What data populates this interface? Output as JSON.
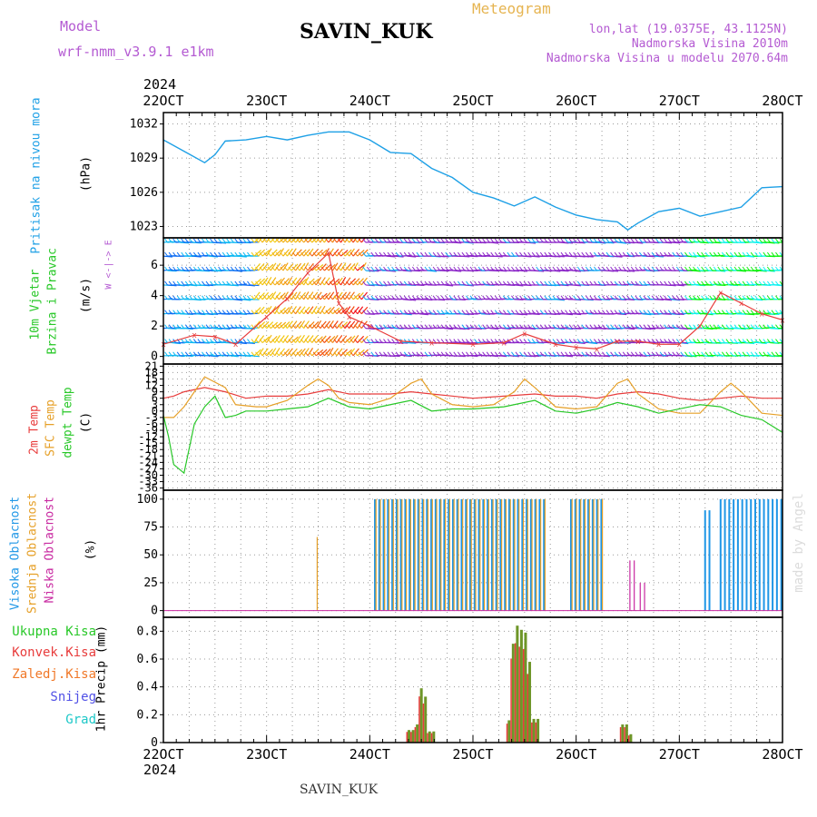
{
  "header": {
    "model_label": "Model",
    "model_name": "wrf-nmm_v3.9.1 e1km",
    "station": "SAVIN_KUK",
    "meteogram": "Meteogram",
    "lonlat": "lon,lat (19.0375E, 43.1125N)",
    "altitude": "Nadmorska Visina 2010m",
    "model_altitude": "Nadmorska Visina u modelu 2070.64m",
    "footer_station": "SAVIN_KUK",
    "watermark": "made by Angel"
  },
  "x_axis": {
    "year": "2024",
    "ticks": [
      "22OCT",
      "23OCT",
      "24OCT",
      "25OCT",
      "26OCT",
      "27OCT",
      "28OCT"
    ],
    "range_days": [
      22,
      28
    ]
  },
  "panel_labels": {
    "pressure": {
      "name": "Pritisak na nivou mora",
      "unit": "(hPa)"
    },
    "wind": {
      "name1": "10m Vjetar",
      "name2": "Brzina i Pravac",
      "unit": "(m/s)",
      "compass": "W <-|-> E"
    },
    "temp": {
      "t2m": "2m Temp",
      "sfc": "SFC Temp",
      "dew": "dewpt Temp",
      "unit": "(C)"
    },
    "cloud": {
      "high": "Visoka Oblacnost",
      "mid": "Srednja Oblacnost",
      "low": "Niska Oblacnost",
      "unit": "(%)"
    },
    "precip": {
      "total": "Ukupna Kisa",
      "conv": "Konvek.Kisa",
      "frz": "Zaledj.Kisa",
      "snow": "Snijeg",
      "grad": "Grad",
      "unit": "1hr Precip (mm)"
    }
  },
  "colors": {
    "pressure": "#1ea0e6",
    "t2m": "#e83c3c",
    "sfc": "#e6a028",
    "dew": "#28c828",
    "high_cloud": "#1e96e6",
    "mid_cloud": "#e6a028",
    "low_cloud": "#c828a0",
    "precip_total": "#6e9628",
    "precip_conv": "#e83c3c",
    "snow": "#5050e6",
    "grad": "#1ec8c8",
    "wind_speed": "#e83c3c"
  },
  "chart_data": [
    {
      "type": "line",
      "panel": "pressure",
      "ylim": [
        1022,
        1033
      ],
      "yticks": [
        1023,
        1026,
        1029,
        1032
      ],
      "x": [
        22.0,
        22.2,
        22.4,
        22.5,
        22.6,
        22.8,
        23.0,
        23.2,
        23.4,
        23.6,
        23.8,
        24.0,
        24.2,
        24.4,
        24.6,
        24.8,
        25.0,
        25.2,
        25.4,
        25.6,
        25.8,
        26.0,
        26.2,
        26.4,
        26.5,
        26.6,
        26.8,
        27.0,
        27.2,
        27.4,
        27.6,
        27.8,
        28.0
      ],
      "y": [
        1030.6,
        1029.6,
        1028.6,
        1029.3,
        1030.5,
        1030.6,
        1030.9,
        1030.6,
        1031.0,
        1031.3,
        1031.3,
        1030.6,
        1029.5,
        1029.4,
        1028.1,
        1027.3,
        1026.0,
        1025.5,
        1024.8,
        1025.6,
        1024.7,
        1024.0,
        1023.6,
        1023.4,
        1022.7,
        1023.3,
        1024.3,
        1024.6,
        1023.9,
        1024.3,
        1024.7,
        1026.4,
        1026.5
      ]
    },
    {
      "type": "line",
      "panel": "wind_speed",
      "ylim": [
        0,
        8
      ],
      "yticks": [
        0,
        2,
        4,
        6
      ],
      "x": [
        22.0,
        22.3,
        22.5,
        22.7,
        23.0,
        23.2,
        23.4,
        23.6,
        23.7,
        23.8,
        24.0,
        24.3,
        24.6,
        25.0,
        25.3,
        25.5,
        25.8,
        26.0,
        26.2,
        26.4,
        26.6,
        26.8,
        27.0,
        27.2,
        27.4,
        27.6,
        27.8,
        28.0
      ],
      "y": [
        0.8,
        1.4,
        1.3,
        0.8,
        2.6,
        3.8,
        5.5,
        6.8,
        3.5,
        2.6,
        2.0,
        1.0,
        0.9,
        0.8,
        0.9,
        1.5,
        0.8,
        0.6,
        0.5,
        1.0,
        1.0,
        0.8,
        0.8,
        2.0,
        4.2,
        3.5,
        2.8,
        2.4
      ]
    },
    {
      "type": "line",
      "panel": "temperature",
      "ylim": [
        -36,
        21
      ],
      "yticks": [
        21,
        18,
        15,
        12,
        9,
        6,
        3,
        0,
        -3,
        -6,
        -9,
        -12,
        -15,
        -18,
        -21,
        -24,
        -27,
        -30,
        -33,
        -36
      ],
      "series": [
        {
          "name": "2m Temp",
          "x": [
            22.0,
            22.1,
            22.2,
            22.3,
            22.4,
            22.6,
            22.8,
            23.0,
            23.2,
            23.4,
            23.6,
            23.8,
            24.0,
            24.2,
            24.4,
            24.6,
            24.8,
            25.0,
            25.3,
            25.6,
            25.8,
            26.0,
            26.2,
            26.4,
            26.6,
            26.8,
            27.0,
            27.2,
            27.4,
            27.6,
            27.8,
            28.0
          ],
          "y": [
            6,
            7,
            9,
            10,
            11,
            9,
            6,
            7,
            7,
            8,
            10,
            8,
            8,
            8,
            9,
            8,
            7,
            6,
            7,
            8,
            7,
            7,
            6,
            8,
            9,
            8,
            6,
            5,
            6,
            7,
            6,
            6
          ]
        },
        {
          "name": "SFC Temp",
          "x": [
            22.0,
            22.1,
            22.2,
            22.3,
            22.4,
            22.6,
            22.7,
            22.9,
            23.0,
            23.2,
            23.4,
            23.5,
            23.6,
            23.7,
            23.8,
            24.0,
            24.2,
            24.4,
            24.5,
            24.6,
            24.8,
            25.0,
            25.2,
            25.4,
            25.5,
            25.6,
            25.8,
            26.0,
            26.2,
            26.4,
            26.5,
            26.6,
            26.8,
            27.0,
            27.2,
            27.4,
            27.5,
            27.6,
            27.8,
            28.0
          ],
          "y": [
            -3,
            -3,
            2,
            9,
            16,
            11,
            3,
            2,
            2,
            5,
            12,
            15,
            12,
            6,
            4,
            3,
            6,
            13,
            15,
            8,
            3,
            2,
            3,
            9,
            15,
            11,
            2,
            1,
            2,
            13,
            15,
            8,
            1,
            -1,
            -1,
            9,
            13,
            9,
            -1,
            -2
          ]
        },
        {
          "name": "dewpt Temp",
          "x": [
            22.0,
            22.05,
            22.1,
            22.2,
            22.3,
            22.4,
            22.5,
            22.6,
            22.7,
            22.8,
            23.0,
            23.2,
            23.4,
            23.6,
            23.8,
            24.0,
            24.2,
            24.4,
            24.6,
            24.8,
            25.0,
            25.3,
            25.6,
            25.8,
            26.0,
            26.2,
            26.4,
            26.6,
            26.8,
            27.0,
            27.2,
            27.4,
            27.6,
            27.8,
            28.0
          ],
          "y": [
            -2,
            -12,
            -25,
            -29,
            -6,
            2,
            7,
            -3,
            -2,
            0,
            0,
            1,
            2,
            6,
            2,
            1,
            3,
            5,
            0,
            1,
            1,
            2,
            5,
            0,
            -1,
            1,
            4,
            2,
            -1,
            1,
            3,
            2,
            -2,
            -4,
            -10
          ]
        }
      ]
    },
    {
      "type": "bar",
      "panel": "cloud",
      "ylim": [
        0,
        100
      ],
      "yticks": [
        0,
        25,
        50,
        75,
        100
      ],
      "series": [
        {
          "name": "Visoka Oblacnost",
          "blocks": [
            [
              24.05,
              25.7,
              100
            ],
            [
              25.95,
              26.25,
              100
            ],
            [
              27.25,
              27.3,
              90
            ],
            [
              27.4,
              28.0,
              100
            ]
          ]
        },
        {
          "name": "Srednja Oblacnost",
          "blocks": [
            [
              23.48,
              23.5,
              66
            ],
            [
              24.05,
              25.7,
              100
            ],
            [
              25.95,
              26.25,
              100
            ]
          ]
        },
        {
          "name": "Niska Oblacnost",
          "blocks": [
            [
              26.5,
              26.55,
              45
            ],
            [
              26.6,
              26.65,
              25
            ]
          ]
        }
      ]
    },
    {
      "type": "bar",
      "panel": "precip",
      "ylim": [
        0,
        0.9
      ],
      "yticks": [
        0,
        0.2,
        0.4,
        0.6,
        0.8
      ],
      "x": [
        24.38,
        24.42,
        24.46,
        24.5,
        24.54,
        24.58,
        24.62,
        25.35,
        25.39,
        25.43,
        25.47,
        25.51,
        25.55,
        25.59,
        25.63,
        26.45,
        26.49,
        26.53
      ],
      "y": [
        0.09,
        0.09,
        0.13,
        0.39,
        0.33,
        0.08,
        0.08,
        0.16,
        0.71,
        0.84,
        0.81,
        0.79,
        0.58,
        0.17,
        0.17,
        0.13,
        0.13,
        0.06
      ]
    }
  ]
}
